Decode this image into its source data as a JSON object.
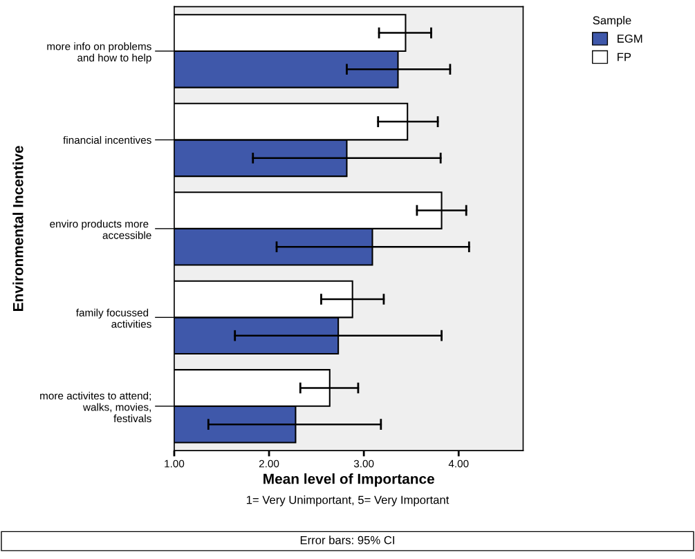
{
  "chart_data": {
    "type": "bar",
    "orientation": "horizontal",
    "xlabel": "Mean level of Importance",
    "ylabel": "Environmental Incentive",
    "legend_title": "Sample",
    "categories": [
      "more info on problems\nand how to help",
      "financial incentives",
      "enviro products more \naccessible",
      "family focussed \nactivities",
      "more activites to attend;\nwalks, movies,\nfestivals"
    ],
    "series": [
      {
        "name": "EGM",
        "color": "#3f58aa",
        "values": [
          3.36,
          2.82,
          3.09,
          2.73,
          2.28
        ],
        "errors": [
          [
            2.82,
            3.91
          ],
          [
            1.83,
            3.81
          ],
          [
            2.08,
            4.11
          ],
          [
            1.64,
            3.82
          ],
          [
            1.36,
            3.18
          ]
        ]
      },
      {
        "name": "FP",
        "color": "#ffffff",
        "values": [
          3.44,
          3.46,
          3.82,
          2.88,
          2.64
        ],
        "errors": [
          [
            3.16,
            3.71
          ],
          [
            3.15,
            3.78
          ],
          [
            3.56,
            4.08
          ],
          [
            2.55,
            3.21
          ],
          [
            2.33,
            2.94
          ]
        ]
      }
    ],
    "xlim": [
      1,
      4.68
    ],
    "xticks": [
      {
        "value": 1,
        "label": "1.00"
      },
      {
        "value": 2,
        "label": "2.00"
      },
      {
        "value": 3,
        "label": "3.00"
      },
      {
        "value": 4,
        "label": "4.00"
      }
    ],
    "grid": false,
    "legend": "top right",
    "annotations": [
      "1= Very Unimportant, 5= Very Important",
      "Error bars: 95% CI"
    ]
  }
}
